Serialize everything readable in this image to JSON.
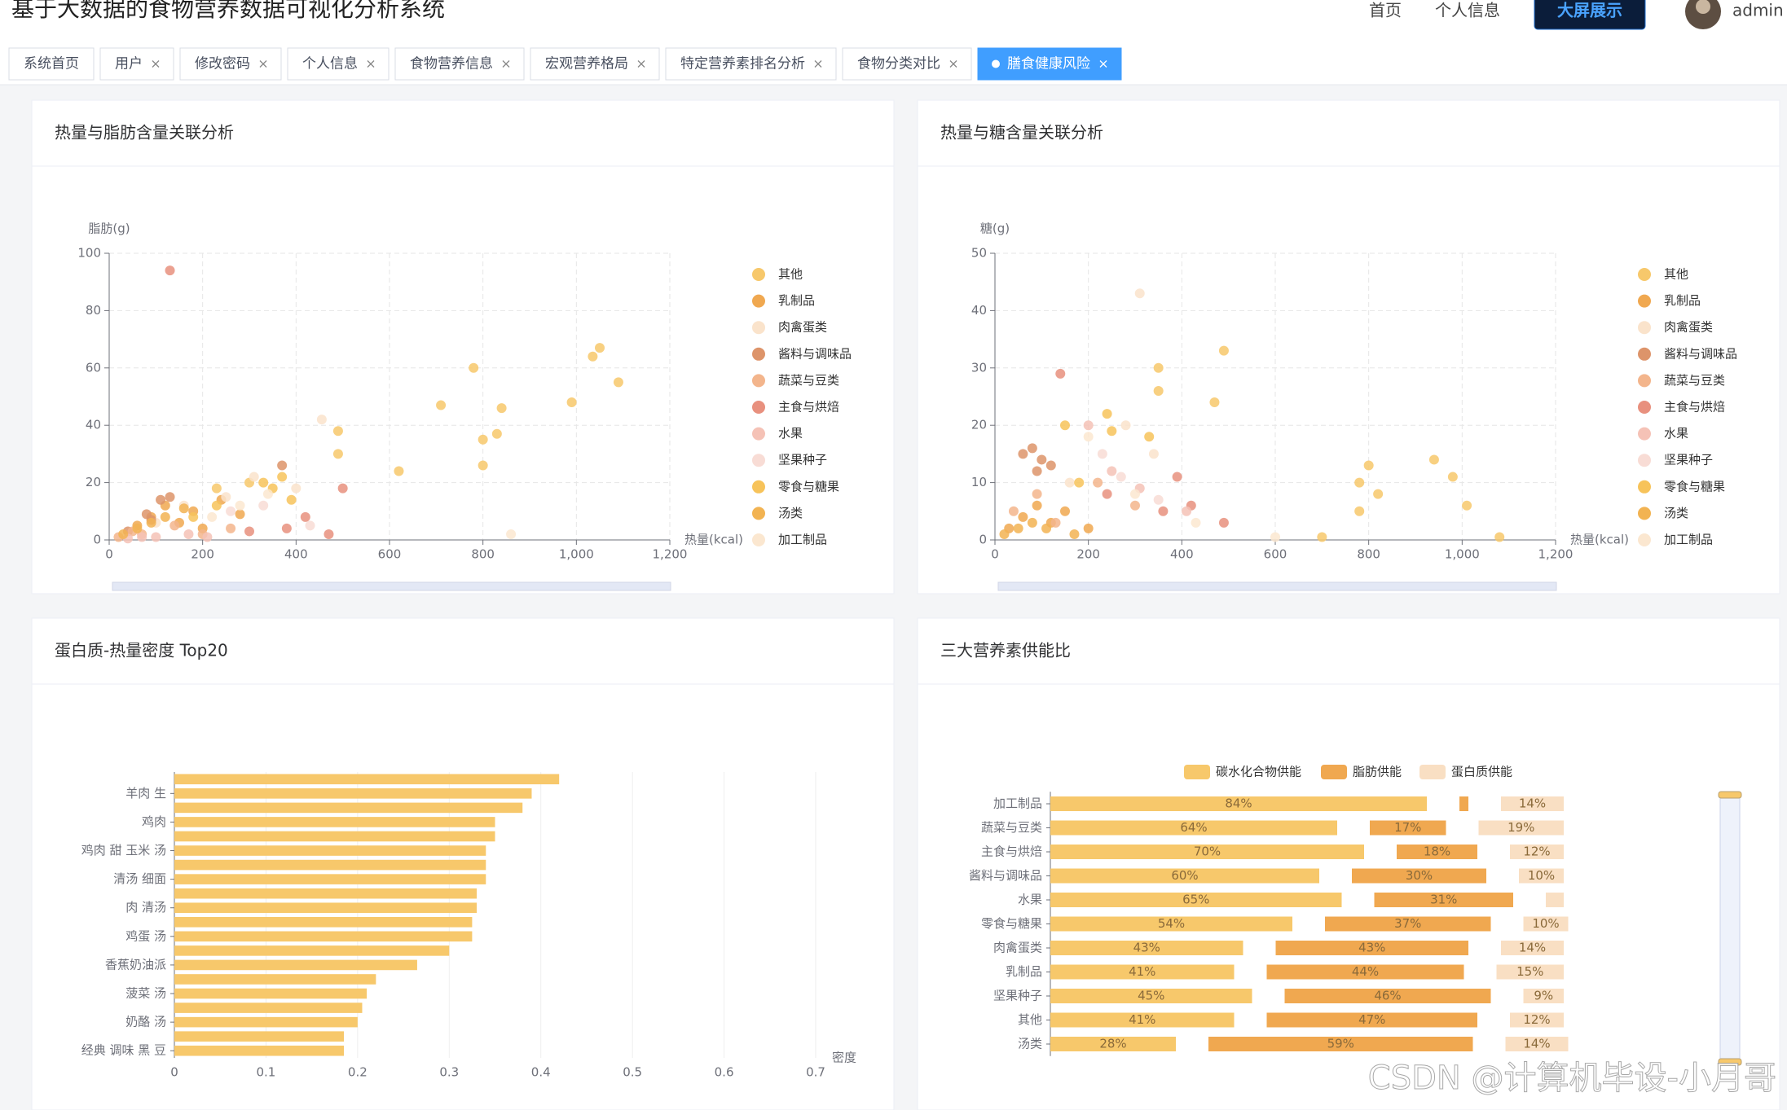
{
  "header": {
    "title": "基于大数据的食物营养数据可视化分析系统",
    "nav": [
      "首页",
      "个人信息"
    ],
    "button": "大屏展示",
    "user": "admin"
  },
  "tabs": [
    {
      "label": "系统首页",
      "closable": false
    },
    {
      "label": "用户"
    },
    {
      "label": "修改密码"
    },
    {
      "label": "个人信息"
    },
    {
      "label": "食物营养信息"
    },
    {
      "label": "宏观营养格局"
    },
    {
      "label": "特定营养素排名分析"
    },
    {
      "label": "食物分类对比"
    },
    {
      "label": "膳食健康风险",
      "active": true
    }
  ],
  "watermark": "CSDN @计算机毕设-小月哥",
  "chart_data": [
    {
      "type": "scatter",
      "title": "热量与脂肪含量关联分析",
      "x_label": "热量(kcal)",
      "y_label": "脂肪(g)",
      "xlim": [
        0,
        1200
      ],
      "ylim": [
        0,
        100
      ],
      "xticks": [
        0,
        200,
        400,
        600,
        800,
        {
          "value": 1000,
          "label": "1,000"
        },
        {
          "value": 1200,
          "label": "1,200"
        }
      ],
      "yticks": [
        0,
        20,
        40,
        60,
        80,
        100
      ],
      "grid": true,
      "legend": "right",
      "series": [
        {
          "name": "其他",
          "color": "#f7c86b",
          "x": [
            780,
            1035,
            1050,
            990,
            1090,
            710,
            840,
            800,
            830,
            800,
            620,
            490,
            490,
            230,
            300
          ],
          "values": [
            60,
            64,
            67,
            48,
            55,
            47,
            46,
            35,
            37,
            26,
            24,
            38,
            30,
            18,
            20
          ]
        },
        {
          "name": "乳制品",
          "color": "#f0a850",
          "x": [
            60,
            90,
            120,
            150,
            180,
            200,
            240,
            280
          ],
          "values": [
            5,
            8,
            12,
            6,
            10,
            4,
            14,
            9
          ]
        },
        {
          "name": "肉禽蛋类",
          "color": "#fae3cb",
          "x": [
            100,
            160,
            250,
            310,
            455,
            400
          ],
          "values": [
            6,
            12,
            15,
            22,
            42,
            18
          ]
        },
        {
          "name": "酱料与调味品",
          "color": "#dd946a",
          "x": [
            40,
            80,
            110,
            130,
            370,
            90
          ],
          "values": [
            3,
            9,
            14,
            15,
            26,
            7
          ]
        },
        {
          "name": "蔬菜与豆类",
          "color": "#f3b58c",
          "x": [
            20,
            50,
            70,
            140,
            200,
            260
          ],
          "values": [
            1,
            3,
            2,
            5,
            2,
            4
          ]
        },
        {
          "name": "主食与烘焙",
          "color": "#e8907e",
          "x": [
            130,
            380,
            420,
            500,
            470,
            300
          ],
          "values": [
            94,
            4,
            8,
            18,
            2,
            3
          ]
        },
        {
          "name": "水果",
          "color": "#f5c2b6",
          "x": [
            40,
            70,
            100,
            170,
            210
          ],
          "values": [
            0.5,
            1,
            1,
            2,
            1
          ]
        },
        {
          "name": "坚果种子",
          "color": "#f8dcd5",
          "x": [
            260,
            330,
            430
          ],
          "values": [
            10,
            12,
            5
          ]
        },
        {
          "name": "零食与糖果",
          "color": "#f7c35a",
          "x": [
            180,
            230,
            330,
            370,
            350,
            390
          ],
          "values": [
            8,
            12,
            20,
            22,
            18,
            14
          ]
        },
        {
          "name": "汤类",
          "color": "#f2b352",
          "x": [
            30,
            60,
            90,
            120,
            160
          ],
          "values": [
            2,
            4,
            6,
            8,
            11
          ]
        },
        {
          "name": "加工制品",
          "color": "#fbe7d0",
          "x": [
            220,
            280,
            340,
            860
          ],
          "values": [
            8,
            12,
            16,
            2
          ]
        }
      ]
    },
    {
      "type": "scatter",
      "title": "热量与糖含量关联分析",
      "x_label": "热量(kcal)",
      "y_label": "糖(g)",
      "xlim": [
        0,
        1200
      ],
      "ylim": [
        0,
        50
      ],
      "xticks": [
        0,
        200,
        400,
        600,
        800,
        {
          "value": 1000,
          "label": "1,000"
        },
        {
          "value": 1200,
          "label": "1,200"
        }
      ],
      "yticks": [
        0,
        10,
        20,
        30,
        40,
        50
      ],
      "grid": true,
      "legend": "right",
      "series": [
        {
          "name": "其他",
          "color": "#f7c86b",
          "x": [
            490,
            350,
            350,
            470,
            940,
            800,
            980,
            780,
            1010,
            820,
            780,
            700,
            1080
          ],
          "values": [
            33,
            30,
            26,
            24,
            14,
            13,
            11,
            10,
            6,
            8,
            5,
            0.5,
            0.5
          ]
        },
        {
          "name": "乳制品",
          "color": "#f0a850",
          "x": [
            30,
            60,
            90,
            120,
            150,
            200
          ],
          "values": [
            2,
            4,
            6,
            3,
            5,
            2
          ]
        },
        {
          "name": "肉禽蛋类",
          "color": "#fae3cb",
          "x": [
            310,
            280,
            340,
            160
          ],
          "values": [
            43,
            20,
            15,
            10
          ]
        },
        {
          "name": "酱料与调味品",
          "color": "#dd946a",
          "x": [
            60,
            80,
            100,
            120,
            90
          ],
          "values": [
            15,
            16,
            14,
            13,
            12
          ]
        },
        {
          "name": "蔬菜与豆类",
          "color": "#f3b58c",
          "x": [
            40,
            90,
            130,
            220,
            300
          ],
          "values": [
            5,
            8,
            3,
            10,
            6
          ]
        },
        {
          "name": "主食与烘焙",
          "color": "#e8907e",
          "x": [
            140,
            390,
            420,
            360,
            240,
            490
          ],
          "values": [
            29,
            11,
            6,
            5,
            8,
            3
          ]
        },
        {
          "name": "水果",
          "color": "#f5c2b6",
          "x": [
            200,
            250,
            310,
            410
          ],
          "values": [
            20,
            12,
            9,
            5
          ]
        },
        {
          "name": "坚果种子",
          "color": "#f8dcd5",
          "x": [
            230,
            270,
            350
          ],
          "values": [
            15,
            11,
            7
          ]
        },
        {
          "name": "零食与糖果",
          "color": "#f7c35a",
          "x": [
            240,
            330,
            250,
            150,
            180
          ],
          "values": [
            22,
            18,
            19,
            20,
            10
          ]
        },
        {
          "name": "汤类",
          "color": "#f2b352",
          "x": [
            20,
            50,
            80,
            110,
            170
          ],
          "values": [
            1,
            2,
            3,
            2,
            1
          ]
        },
        {
          "name": "加工制品",
          "color": "#fbe7d0",
          "x": [
            200,
            300,
            430,
            600
          ],
          "values": [
            18,
            8,
            3,
            0.5
          ]
        }
      ]
    },
    {
      "type": "hbar",
      "title": "蛋白质-热量密度 Top20",
      "x_label": "密度",
      "color": "#f7c86b",
      "categories": [
        "经典 调味 黑 豆",
        null,
        "奶酪 汤",
        null,
        "菠菜 汤",
        null,
        "香蕉奶油派",
        null,
        "鸡蛋 汤",
        null,
        "肉 清汤",
        null,
        "清汤 细面",
        null,
        "鸡肉 甜 玉米 汤",
        null,
        "鸡肉",
        null,
        "羊肉 生",
        null
      ],
      "values": [
        0.185,
        0.185,
        0.2,
        0.205,
        0.21,
        0.22,
        0.265,
        0.3,
        0.325,
        0.325,
        0.33,
        0.33,
        0.34,
        0.34,
        0.34,
        0.35,
        0.35,
        0.38,
        0.39,
        0.42
      ],
      "xlim": [
        0,
        0.7
      ],
      "xticks": [
        0,
        0.1,
        0.2,
        0.3,
        0.4,
        0.5,
        0.6,
        0.7
      ],
      "grid": true
    },
    {
      "type": "stacked_hbar",
      "title": "三大营养素供能比",
      "legend": "top",
      "categories": [
        "加工制品",
        "蔬菜与豆类",
        "主食与烘焙",
        "酱料与调味品",
        "水果",
        "零食与糖果",
        "肉禽蛋类",
        "乳制品",
        "坚果种子",
        "其他",
        "汤类"
      ],
      "series": [
        {
          "name": "碳水化合物供能",
          "color": "#f7c86b",
          "values": [
            84,
            64,
            70,
            60,
            65,
            54,
            43,
            41,
            45,
            41,
            28
          ],
          "value_labels": [
            "84%",
            "64%",
            "70%",
            "60%",
            "65%",
            "54%",
            "43%",
            "41%",
            "45%",
            "41%",
            "28%"
          ]
        },
        {
          "name": "脂肪供能",
          "color": "#f0a850",
          "values": [
            2,
            17,
            18,
            30,
            31,
            37,
            43,
            44,
            46,
            47,
            59
          ],
          "value_labels": [
            null,
            "17%",
            "18%",
            "30%",
            "31%",
            "37%",
            "43%",
            "44%",
            "46%",
            "47%",
            "59%"
          ]
        },
        {
          "name": "蛋白质供能",
          "color": "#f9dfc3",
          "values": [
            14,
            19,
            12,
            10,
            4,
            10,
            14,
            15,
            9,
            12,
            14
          ],
          "value_labels": [
            "14%",
            "19%",
            "12%",
            "10%",
            null,
            "10%",
            "14%",
            "15%",
            "9%",
            "12%",
            "14%"
          ]
        }
      ]
    }
  ]
}
